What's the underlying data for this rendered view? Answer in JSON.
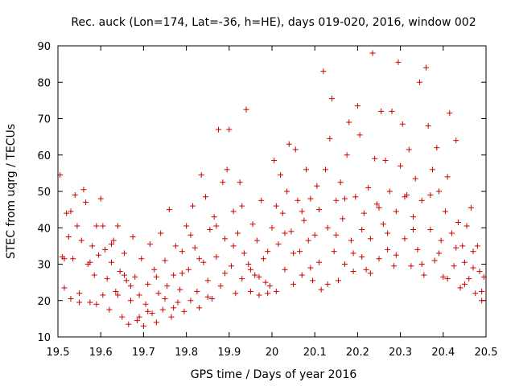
{
  "chart_data": {
    "type": "scatter",
    "title": "Rec. auck (Lon=174, Lat=-36, h=HE), days 019-020, 2016, window 002",
    "xlabel": "GPS time / Days of year 2016",
    "ylabel": "STEC from uqrg / TECUs",
    "xlim": [
      19.5,
      20.5
    ],
    "ylim": [
      10,
      90
    ],
    "xticks": [
      19.5,
      19.6,
      19.7,
      19.8,
      19.9,
      20,
      20.1,
      20.2,
      20.3,
      20.4,
      20.5
    ],
    "xtick_labels": [
      "19.5",
      "19.6",
      "19.7",
      "19.8",
      "19.9",
      "20",
      "20.1",
      "20.2",
      "20.3",
      "20.4",
      "20.5"
    ],
    "yticks": [
      10,
      20,
      30,
      40,
      50,
      60,
      70,
      80,
      90
    ],
    "ytick_labels": [
      "10",
      "20",
      "30",
      "40",
      "50",
      "60",
      "70",
      "80",
      "90"
    ],
    "grid": false,
    "marker": "plus",
    "marker_color": "#cc0000",
    "series": [
      {
        "name": "STEC",
        "points": [
          [
            19.505,
            54.5
          ],
          [
            19.51,
            32.0
          ],
          [
            19.515,
            23.5
          ],
          [
            19.52,
            44.0
          ],
          [
            19.525,
            37.5
          ],
          [
            19.53,
            20.5
          ],
          [
            19.535,
            31.5
          ],
          [
            19.54,
            49.0
          ],
          [
            19.545,
            40.5
          ],
          [
            19.55,
            22.0
          ],
          [
            19.555,
            36.5
          ],
          [
            19.56,
            50.5
          ],
          [
            19.565,
            47.0
          ],
          [
            19.57,
            30.0
          ],
          [
            19.575,
            19.5
          ],
          [
            19.58,
            35.0
          ],
          [
            19.585,
            27.0
          ],
          [
            19.59,
            40.5
          ],
          [
            19.595,
            32.5
          ],
          [
            19.6,
            48.0
          ],
          [
            19.605,
            21.5
          ],
          [
            19.61,
            34.0
          ],
          [
            19.615,
            26.0
          ],
          [
            19.62,
            17.5
          ],
          [
            19.625,
            30.5
          ],
          [
            19.63,
            36.5
          ],
          [
            19.635,
            22.5
          ],
          [
            19.64,
            40.5
          ],
          [
            19.645,
            28.0
          ],
          [
            19.65,
            15.5
          ],
          [
            19.655,
            33.0
          ],
          [
            19.66,
            25.5
          ],
          [
            19.665,
            13.5
          ],
          [
            19.67,
            20.0
          ],
          [
            19.675,
            37.5
          ],
          [
            19.68,
            26.5
          ],
          [
            19.685,
            14.5
          ],
          [
            19.69,
            21.5
          ],
          [
            19.695,
            31.5
          ],
          [
            19.7,
            13.0
          ],
          [
            19.705,
            19.0
          ],
          [
            19.71,
            24.5
          ],
          [
            19.715,
            35.5
          ],
          [
            19.72,
            16.5
          ],
          [
            19.725,
            28.5
          ],
          [
            19.73,
            14.0
          ],
          [
            19.735,
            22.0
          ],
          [
            19.74,
            38.5
          ],
          [
            19.745,
            17.5
          ],
          [
            19.75,
            31.0
          ],
          [
            19.755,
            24.0
          ],
          [
            19.76,
            45.0
          ],
          [
            19.765,
            15.5
          ],
          [
            19.77,
            27.0
          ],
          [
            19.775,
            35.0
          ],
          [
            19.78,
            19.5
          ],
          [
            19.785,
            23.0
          ],
          [
            19.79,
            33.5
          ],
          [
            19.795,
            17.0
          ],
          [
            19.8,
            40.5
          ],
          [
            19.805,
            28.5
          ],
          [
            19.81,
            20.0
          ],
          [
            19.815,
            46.0
          ],
          [
            19.82,
            34.5
          ],
          [
            19.825,
            22.5
          ],
          [
            19.83,
            18.0
          ],
          [
            19.835,
            54.5
          ],
          [
            19.84,
            30.5
          ],
          [
            19.845,
            48.5
          ],
          [
            19.85,
            25.5
          ],
          [
            19.855,
            39.5
          ],
          [
            19.86,
            20.5
          ],
          [
            19.865,
            43.0
          ],
          [
            19.87,
            32.0
          ],
          [
            19.875,
            67.0
          ],
          [
            19.88,
            24.0
          ],
          [
            19.885,
            52.5
          ],
          [
            19.89,
            37.0
          ],
          [
            19.895,
            56.0
          ],
          [
            19.9,
            67.0
          ],
          [
            19.905,
            29.5
          ],
          [
            19.91,
            44.5
          ],
          [
            19.915,
            22.0
          ],
          [
            19.92,
            38.5
          ],
          [
            19.925,
            52.5
          ],
          [
            19.93,
            26.0
          ],
          [
            19.935,
            33.0
          ],
          [
            19.94,
            72.5
          ],
          [
            19.945,
            30.0
          ],
          [
            19.95,
            22.5
          ],
          [
            19.955,
            41.0
          ],
          [
            19.96,
            27.0
          ],
          [
            19.965,
            36.5
          ],
          [
            19.97,
            21.5
          ],
          [
            19.975,
            47.5
          ],
          [
            19.98,
            31.5
          ],
          [
            19.985,
            25.0
          ],
          [
            19.99,
            33.5
          ],
          [
            19.995,
            24.0
          ],
          [
            20.0,
            40.0
          ],
          [
            20.005,
            58.5
          ],
          [
            20.01,
            22.5
          ],
          [
            20.015,
            35.5
          ],
          [
            20.02,
            54.5
          ],
          [
            20.025,
            44.0
          ],
          [
            20.03,
            28.5
          ],
          [
            20.035,
            50.0
          ],
          [
            20.04,
            63.0
          ],
          [
            20.045,
            39.0
          ],
          [
            20.05,
            24.5
          ],
          [
            20.055,
            61.5
          ],
          [
            20.06,
            47.5
          ],
          [
            20.065,
            33.5
          ],
          [
            20.07,
            27.0
          ],
          [
            20.075,
            42.0
          ],
          [
            20.08,
            56.0
          ],
          [
            20.085,
            36.5
          ],
          [
            20.09,
            48.0
          ],
          [
            20.095,
            25.5
          ],
          [
            20.1,
            38.0
          ],
          [
            20.105,
            51.5
          ],
          [
            20.11,
            30.5
          ],
          [
            20.115,
            23.0
          ],
          [
            20.12,
            83.0
          ],
          [
            20.125,
            56.0
          ],
          [
            20.13,
            40.0
          ],
          [
            20.135,
            64.5
          ],
          [
            20.14,
            75.5
          ],
          [
            20.145,
            33.5
          ],
          [
            20.15,
            47.5
          ],
          [
            20.155,
            25.5
          ],
          [
            20.16,
            52.5
          ],
          [
            20.165,
            42.5
          ],
          [
            20.17,
            30.0
          ],
          [
            20.175,
            60.0
          ],
          [
            20.18,
            69.0
          ],
          [
            20.185,
            36.5
          ],
          [
            20.19,
            28.0
          ],
          [
            20.195,
            48.5
          ],
          [
            20.2,
            73.5
          ],
          [
            20.205,
            65.5
          ],
          [
            20.21,
            32.0
          ],
          [
            20.215,
            44.0
          ],
          [
            20.22,
            28.5
          ],
          [
            20.225,
            51.0
          ],
          [
            20.23,
            37.0
          ],
          [
            20.235,
            88.0
          ],
          [
            20.24,
            59.0
          ],
          [
            20.245,
            46.5
          ],
          [
            20.25,
            31.5
          ],
          [
            20.255,
            72.0
          ],
          [
            20.26,
            41.0
          ],
          [
            20.265,
            58.5
          ],
          [
            20.27,
            34.0
          ],
          [
            20.275,
            50.0
          ],
          [
            20.28,
            72.0
          ],
          [
            20.285,
            29.5
          ],
          [
            20.29,
            44.5
          ],
          [
            20.295,
            85.5
          ],
          [
            20.3,
            57.0
          ],
          [
            20.305,
            68.5
          ],
          [
            20.31,
            37.0
          ],
          [
            20.315,
            49.0
          ],
          [
            20.32,
            61.5
          ],
          [
            20.325,
            29.5
          ],
          [
            20.33,
            43.0
          ],
          [
            20.335,
            53.5
          ],
          [
            20.34,
            34.0
          ],
          [
            20.345,
            80.0
          ],
          [
            20.35,
            47.5
          ],
          [
            20.355,
            27.0
          ],
          [
            20.36,
            84.0
          ],
          [
            20.365,
            68.0
          ],
          [
            20.37,
            39.5
          ],
          [
            20.375,
            56.0
          ],
          [
            20.38,
            31.0
          ],
          [
            20.385,
            62.0
          ],
          [
            20.39,
            50.0
          ],
          [
            20.395,
            36.5
          ],
          [
            20.4,
            26.5
          ],
          [
            20.405,
            44.5
          ],
          [
            20.41,
            54.0
          ],
          [
            20.415,
            71.5
          ],
          [
            20.42,
            38.5
          ],
          [
            20.425,
            29.5
          ],
          [
            20.43,
            64.0
          ],
          [
            20.435,
            41.5
          ],
          [
            20.44,
            23.5
          ],
          [
            20.445,
            35.0
          ],
          [
            20.45,
            30.5
          ],
          [
            20.455,
            40.5
          ],
          [
            20.46,
            26.0
          ],
          [
            20.465,
            45.5
          ],
          [
            20.47,
            33.5
          ],
          [
            20.475,
            22.0
          ],
          [
            20.48,
            35.0
          ],
          [
            20.485,
            28.0
          ],
          [
            20.49,
            20.0
          ],
          [
            20.495,
            26.5
          ],
          [
            19.515,
            31.5
          ],
          [
            19.53,
            44.5
          ],
          [
            19.55,
            19.5
          ],
          [
            19.575,
            30.5
          ],
          [
            19.59,
            19.0
          ],
          [
            19.605,
            40.5
          ],
          [
            19.625,
            35.5
          ],
          [
            19.64,
            21.5
          ],
          [
            19.655,
            27.0
          ],
          [
            19.67,
            24.0
          ],
          [
            19.69,
            15.5
          ],
          [
            19.71,
            17.0
          ],
          [
            19.73,
            26.5
          ],
          [
            19.75,
            20.5
          ],
          [
            19.77,
            18.0
          ],
          [
            19.79,
            27.5
          ],
          [
            19.81,
            38.0
          ],
          [
            19.83,
            31.5
          ],
          [
            19.85,
            21.0
          ],
          [
            19.87,
            40.5
          ],
          [
            19.89,
            27.5
          ],
          [
            19.91,
            35.0
          ],
          [
            19.93,
            46.0
          ],
          [
            19.95,
            28.5
          ],
          [
            19.97,
            26.5
          ],
          [
            19.99,
            22.0
          ],
          [
            20.01,
            46.0
          ],
          [
            20.03,
            38.5
          ],
          [
            20.05,
            33.0
          ],
          [
            20.07,
            44.5
          ],
          [
            20.09,
            29.0
          ],
          [
            20.11,
            45.0
          ],
          [
            20.13,
            24.5
          ],
          [
            20.15,
            38.0
          ],
          [
            20.17,
            48.0
          ],
          [
            20.19,
            33.0
          ],
          [
            20.21,
            39.5
          ],
          [
            20.23,
            27.5
          ],
          [
            20.25,
            45.5
          ],
          [
            20.27,
            38.5
          ],
          [
            20.29,
            32.5
          ],
          [
            20.31,
            48.5
          ],
          [
            20.33,
            39.5
          ],
          [
            20.35,
            30.0
          ],
          [
            20.37,
            49.0
          ],
          [
            20.39,
            33.0
          ],
          [
            20.41,
            26.0
          ],
          [
            20.43,
            34.5
          ],
          [
            20.45,
            24.5
          ],
          [
            20.47,
            29.0
          ],
          [
            20.49,
            22.5
          ]
        ]
      }
    ]
  }
}
